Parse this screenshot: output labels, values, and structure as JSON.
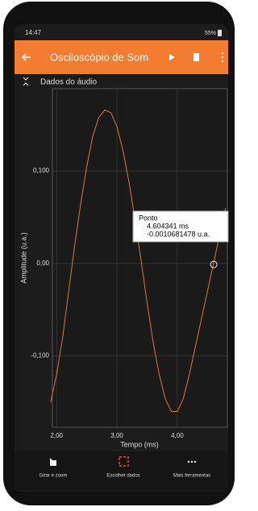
{
  "status_bar": {
    "time": "14:47",
    "battery": "55%"
  },
  "app_bar": {
    "title": "Osciloscópio de Som"
  },
  "chart_data": {
    "type": "line",
    "title": "Dados do áudio",
    "xlabel": "Tempo (ms)",
    "ylabel": "Amplitude (u.a.)",
    "x": [
      1.9,
      2.0,
      2.1,
      2.2,
      2.3,
      2.4,
      2.5,
      2.6,
      2.7,
      2.8,
      2.9,
      3.0,
      3.1,
      3.2,
      3.3,
      3.4,
      3.5,
      3.6,
      3.7,
      3.8,
      3.9,
      4.0,
      4.1,
      4.2,
      4.3,
      4.4,
      4.5,
      4.6,
      4.7,
      4.8
    ],
    "series": [
      {
        "color": "#d9773a",
        "values": [
          -0.15,
          -0.12,
          -0.08,
          -0.03,
          0.02,
          0.065,
          0.105,
          0.138,
          0.158,
          0.166,
          0.163,
          0.148,
          0.122,
          0.088,
          0.047,
          0.003,
          -0.043,
          -0.085,
          -0.12,
          -0.146,
          -0.16,
          -0.16,
          -0.146,
          -0.12,
          -0.09,
          -0.06,
          -0.03,
          0.0,
          0.03,
          0.06
        ]
      }
    ],
    "xlim": [
      1.93,
      4.83
    ],
    "ylim": [
      -0.177,
      0.189
    ],
    "xticks": [
      {
        "value": 2,
        "label": "2,00"
      },
      {
        "value": 3,
        "label": "3,00"
      },
      {
        "value": 4,
        "label": "4,00"
      }
    ],
    "yticks": [
      {
        "value": 0.1,
        "label": "0,100"
      },
      {
        "value": 0,
        "label": "0,00"
      },
      {
        "value": -0.1,
        "label": "-0,100"
      }
    ],
    "grid": true,
    "marker": {
      "x": 4.604341,
      "y": -0.0010681478,
      "title": "Ponto",
      "x_text": "4.604341 ms",
      "y_text": "-0.0010681478 u.a."
    }
  },
  "bottom_nav": [
    "Girar e zoom",
    "Escolher dados",
    "Mais ferramentas"
  ]
}
